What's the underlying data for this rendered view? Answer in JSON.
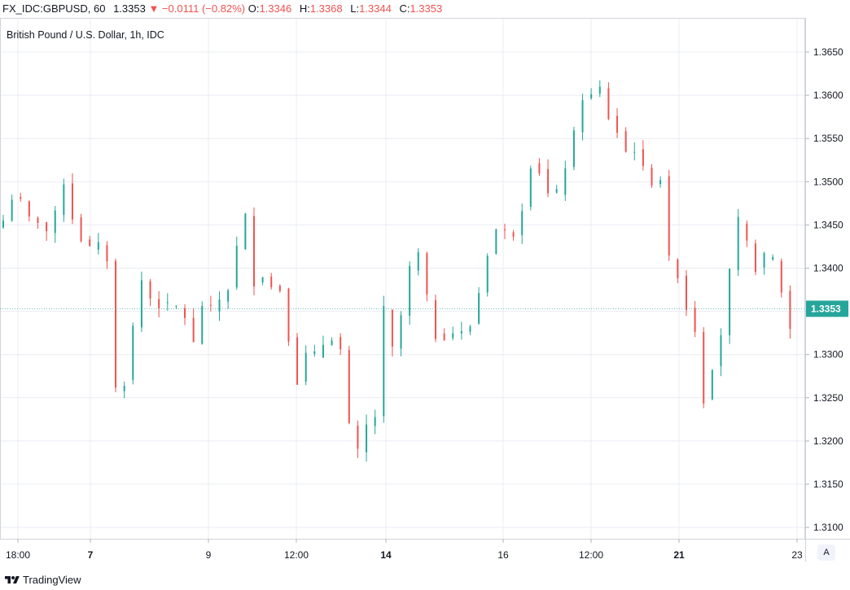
{
  "header": {
    "symbol": "FX_IDC:GBPUSD, 60",
    "last": "1.3353",
    "change": "▼ −0.0111 (−0.82%)",
    "open_label": "O:",
    "open": "1.3346",
    "high_label": "H:",
    "high": "1.3368",
    "low_label": "L:",
    "low": "1.3344",
    "close_label": "C:",
    "close": "1.3353"
  },
  "chart_data": {
    "type": "candlestick",
    "title": "British Pound / U.S. Dollar, 1h, IDC",
    "ylim": [
      1.3075,
      1.3685
    ],
    "y_ticks": [
      "1.3650",
      "1.3600",
      "1.3550",
      "1.3500",
      "1.3450",
      "1.3400",
      "1.3350",
      "1.3300",
      "1.3250",
      "1.3200",
      "1.3150",
      "1.3100"
    ],
    "x_ticks": [
      "18:00",
      "7",
      "9",
      "12:00",
      "14",
      "16",
      "12:00",
      "21",
      "23"
    ],
    "bold_x_ticks": [
      "7",
      "14",
      "21"
    ],
    "last_price_label": "1.3353",
    "grid": true,
    "colors": {
      "up": "#26a69a",
      "down": "#ef5350",
      "grid": "#e9ecf2",
      "text": "#131722"
    },
    "close_path": [
      [
        0,
        1.3455
      ],
      [
        1.5,
        1.3495
      ],
      [
        2.5,
        1.3458
      ],
      [
        4.5,
        1.3454
      ],
      [
        5.5,
        1.3432
      ],
      [
        6,
        1.3462
      ],
      [
        7,
        1.35
      ],
      [
        7.8,
        1.3462
      ],
      [
        8.5,
        1.345
      ],
      [
        9.5,
        1.3418
      ],
      [
        10.5,
        1.3428
      ],
      [
        11.2,
        1.3425
      ],
      [
        12.2,
        1.3407
      ],
      [
        12.7,
        1.3258
      ],
      [
        14,
        1.3268
      ],
      [
        14.8,
        1.3318
      ],
      [
        15.7,
        1.338
      ],
      [
        16.3,
        1.3392
      ],
      [
        17.2,
        1.3358
      ],
      [
        19,
        1.3356
      ],
      [
        20.4,
        1.3355
      ],
      [
        21.2,
        1.334
      ],
      [
        22,
        1.3312
      ],
      [
        22.6,
        1.336
      ],
      [
        24,
        1.3352
      ],
      [
        25.5,
        1.337
      ],
      [
        26.1,
        1.3378
      ],
      [
        26.8,
        1.3412
      ],
      [
        27.6,
        1.346
      ],
      [
        28,
        1.346
      ],
      [
        28.6,
        1.3395
      ],
      [
        29.3,
        1.3375
      ],
      [
        30.2,
        1.3398
      ],
      [
        31,
        1.3378
      ],
      [
        32.2,
        1.3375
      ],
      [
        33,
        1.332
      ],
      [
        33.8,
        1.3258
      ],
      [
        34.6,
        1.3302
      ],
      [
        35.5,
        1.3296
      ],
      [
        36.4,
        1.3302
      ],
      [
        37.3,
        1.3318
      ],
      [
        38.1,
        1.3321
      ],
      [
        39,
        1.3305
      ],
      [
        39.8,
        1.3226
      ],
      [
        40.8,
        1.318
      ],
      [
        41.7,
        1.3212
      ],
      [
        42.6,
        1.3228
      ],
      [
        43.4,
        1.3229
      ],
      [
        44,
        1.3352
      ],
      [
        44.9,
        1.3303
      ],
      [
        45.8,
        1.333
      ],
      [
        46.6,
        1.339
      ],
      [
        47.5,
        1.3412
      ],
      [
        48.2,
        1.3418
      ],
      [
        48.9,
        1.3378
      ],
      [
        49.3,
        1.3325
      ],
      [
        50.3,
        1.332
      ],
      [
        51.5,
        1.3322
      ],
      [
        52.6,
        1.333
      ],
      [
        53.7,
        1.3315
      ],
      [
        54.5,
        1.3364
      ],
      [
        55.5,
        1.338
      ],
      [
        56.3,
        1.344
      ],
      [
        57.4,
        1.3448
      ],
      [
        58.4,
        1.3438
      ],
      [
        59.4,
        1.3442
      ],
      [
        60.3,
        1.3485
      ],
      [
        61.2,
        1.353
      ],
      [
        62.1,
        1.351
      ],
      [
        62.9,
        1.3486
      ],
      [
        63.7,
        1.3482
      ],
      [
        64.6,
        1.3497
      ],
      [
        65.4,
        1.354
      ],
      [
        66.3,
        1.3562
      ],
      [
        67.2,
        1.3608
      ],
      [
        68.1,
        1.3598
      ],
      [
        68.9,
        1.3612
      ],
      [
        69.8,
        1.3575
      ],
      [
        70.6,
        1.3572
      ],
      [
        71.5,
        1.354
      ],
      [
        72.4,
        1.353
      ],
      [
        73.3,
        1.3542
      ],
      [
        74.1,
        1.351
      ],
      [
        75,
        1.35
      ],
      [
        75.8,
        1.3508
      ],
      [
        76.5,
        1.3496
      ],
      [
        77,
        1.341
      ],
      [
        77.9,
        1.3398
      ],
      [
        78.8,
        1.3352
      ],
      [
        79.6,
        1.3358
      ],
      [
        80.4,
        1.33
      ],
      [
        81.2,
        1.323
      ],
      [
        82,
        1.3287
      ],
      [
        82.9,
        1.3318
      ],
      [
        83.8,
        1.3375
      ],
      [
        84.6,
        1.3458
      ],
      [
        85.5,
        1.345
      ],
      [
        86.4,
        1.341
      ],
      [
        87.3,
        1.3395
      ],
      [
        88.2,
        1.3418
      ],
      [
        89.1,
        1.341
      ],
      [
        89.9,
        1.338
      ],
      [
        90.8,
        1.3322
      ],
      [
        91.6,
        1.3353
      ]
    ]
  },
  "footer": {
    "brand": "TradingView",
    "auto_label": "A"
  }
}
